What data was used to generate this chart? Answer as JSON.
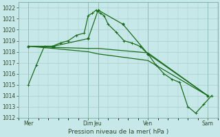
{
  "background_color": "#c6e8e8",
  "grid_color": "#a0c8c8",
  "line_color": "#1a6b1a",
  "xlabel": "Pression niveau de la mer( hPa )",
  "ylim": [
    1012,
    1022.5
  ],
  "yticks": [
    1012,
    1013,
    1014,
    1015,
    1016,
    1017,
    1018,
    1019,
    1020,
    1021,
    1022
  ],
  "xlim": [
    0,
    20
  ],
  "xtick_positions": [
    1,
    7,
    8,
    13,
    19
  ],
  "xtick_labels": [
    "Mer",
    "Dim",
    "Jeu",
    "Ven",
    "Sam"
  ],
  "vlines": [
    1,
    7,
    8,
    13,
    19
  ],
  "line1": {
    "x": [
      1,
      1.8,
      2.6,
      3.4,
      4.2,
      5.0,
      5.8,
      6.6,
      7.0,
      7.4,
      7.8,
      8.2,
      8.6,
      9.0,
      9.8,
      10.6,
      11.4,
      12.2,
      13.0,
      13.8,
      14.6,
      15.4,
      16.2,
      17.0,
      17.8,
      18.6,
      19.4
    ],
    "y": [
      1015.0,
      1016.8,
      1018.5,
      1018.5,
      1018.8,
      1019.0,
      1019.5,
      1019.7,
      1021.3,
      1021.5,
      1021.8,
      1021.5,
      1021.3,
      1020.5,
      1019.8,
      1019.0,
      1018.8,
      1018.5,
      1017.8,
      1016.8,
      1016.0,
      1015.5,
      1015.2,
      1013.0,
      1012.4,
      1013.2,
      1014.0
    ]
  },
  "line2": {
    "x": [
      1,
      3.5,
      7.0,
      8.0,
      10.5,
      13.0,
      19.0
    ],
    "y": [
      1018.5,
      1018.5,
      1019.2,
      1021.8,
      1020.5,
      1017.8,
      1014.0
    ]
  },
  "line3": {
    "x": [
      1,
      3.5,
      7.0,
      8.0,
      10.5,
      13.0,
      19.0
    ],
    "y": [
      1018.5,
      1018.4,
      1018.3,
      1018.3,
      1018.1,
      1017.9,
      1014.0
    ]
  },
  "line4": {
    "x": [
      1,
      3.5,
      7.0,
      8.0,
      10.5,
      13.0,
      19.0
    ],
    "y": [
      1018.5,
      1018.3,
      1018.0,
      1017.8,
      1017.5,
      1017.2,
      1014.0
    ]
  }
}
